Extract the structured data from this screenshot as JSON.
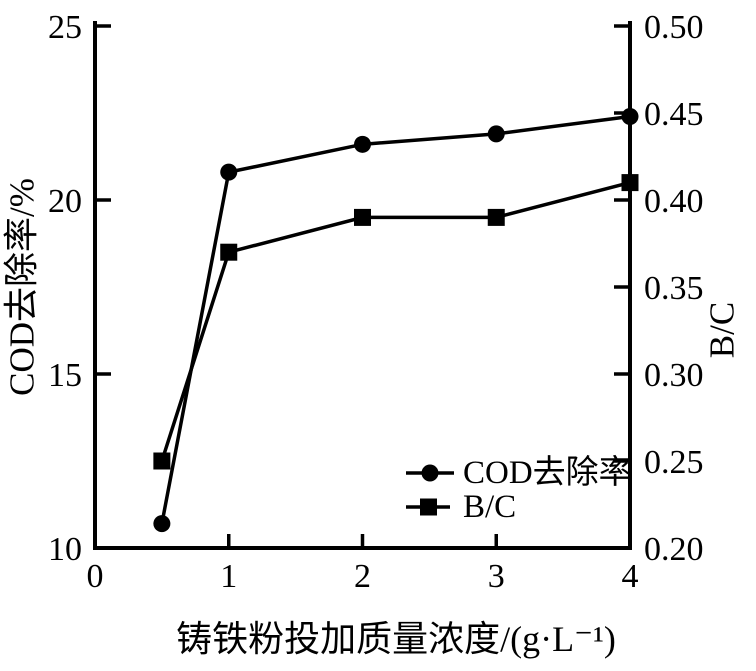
{
  "figure": {
    "background": "#ffffff",
    "ink_color": "#000000"
  },
  "chart_data": {
    "type": "line",
    "title": "",
    "xlabel": "铸铁粉投加质量浓度/(g·L⁻¹)",
    "ylabel_left": "COD去除率/%",
    "ylabel_right": "B/C",
    "grid": false,
    "xlim": [
      0,
      4
    ],
    "x_tick_labels": [
      "0",
      "1",
      "2",
      "3",
      "4"
    ],
    "x_tick_values": [
      0,
      1,
      2,
      3,
      4
    ],
    "ylim_left": [
      10,
      25
    ],
    "y_left_tick_labels": [
      "10",
      "15",
      "20",
      "25"
    ],
    "y_left_tick_values": [
      10,
      15,
      20,
      25
    ],
    "ylim_right": [
      0.2,
      0.5
    ],
    "y_right_tick_labels": [
      "0.20",
      "0.25",
      "0.30",
      "0.35",
      "0.40",
      "0.45",
      "0.50"
    ],
    "y_right_tick_values": [
      0.2,
      0.25,
      0.3,
      0.35,
      0.4,
      0.45,
      0.5
    ],
    "x": [
      0.5,
      1,
      2,
      3,
      4
    ],
    "series": [
      {
        "name": "COD去除率",
        "axis": "left",
        "marker": "circle",
        "color": "#000000",
        "values": [
          10.7,
          20.8,
          21.6,
          21.9,
          22.4
        ]
      },
      {
        "name": "B/C",
        "axis": "right",
        "marker": "square",
        "color": "#000000",
        "values": [
          0.25,
          0.37,
          0.39,
          0.39,
          0.41
        ]
      }
    ],
    "legend": {
      "position": "inside-bottom-right"
    }
  }
}
